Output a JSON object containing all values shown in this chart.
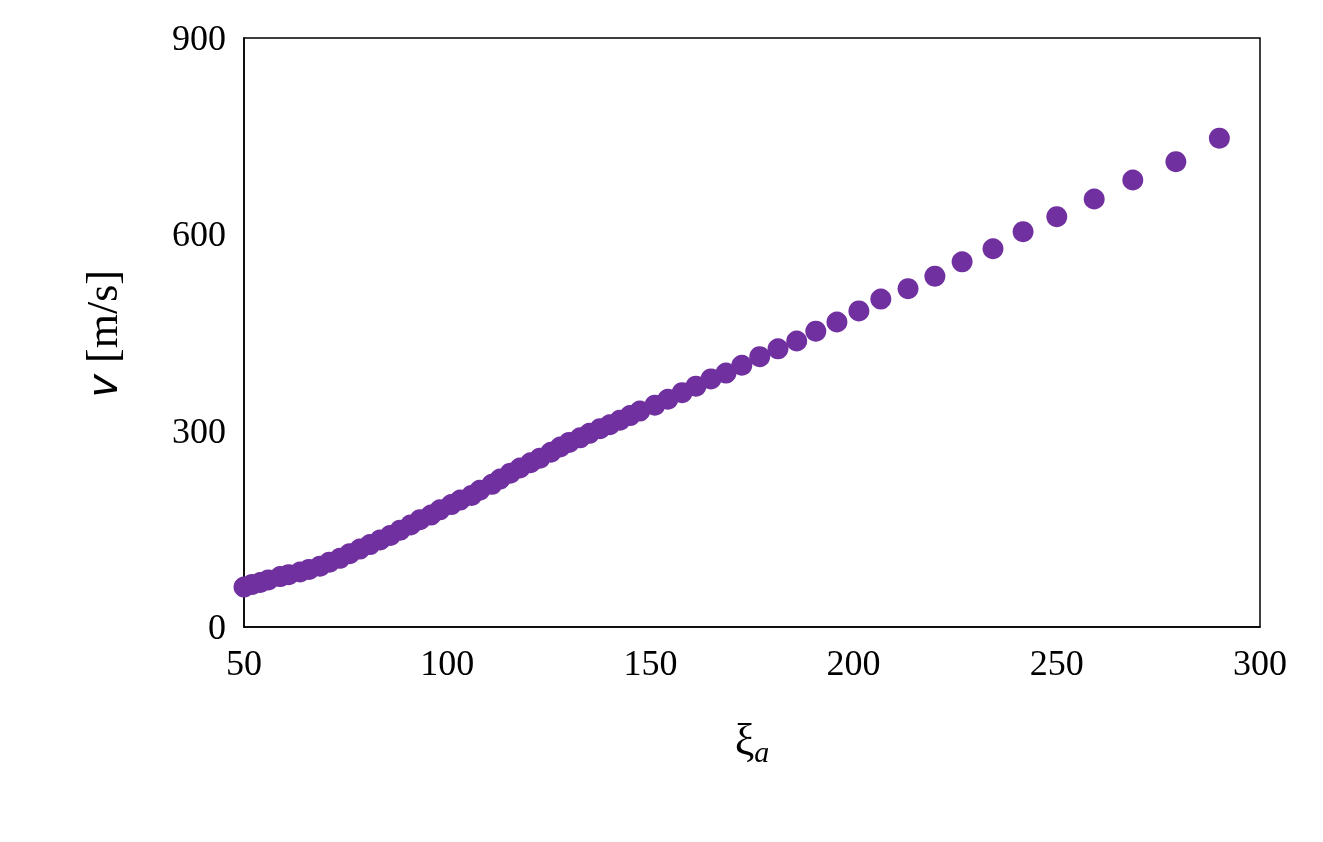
{
  "chart_data": {
    "type": "scatter",
    "xlabel": "ξ$_{a}$",
    "ylabel": "𝑣 [m/s]",
    "xlim": [
      50,
      300
    ],
    "xticks": [
      50,
      100,
      150,
      200,
      250,
      300
    ],
    "ylim": [
      0,
      900
    ],
    "yticks": [
      0,
      300,
      600,
      900
    ],
    "grid": false,
    "marker": "circle",
    "series": [
      {
        "color": "#7030a0",
        "x": [
          50,
          52,
          54,
          56,
          58.9,
          61,
          63.8,
          66,
          68.7,
          71,
          73.6,
          76,
          78.5,
          81,
          83.5,
          86,
          88.4,
          91,
          93.3,
          96,
          98.2,
          101,
          103.2,
          106,
          108,
          111,
          113,
          115.5,
          117.9,
          120.5,
          122.8,
          125.5,
          127.8,
          130,
          132.7,
          135,
          137.6,
          140,
          142.5,
          145,
          147.4,
          151.1,
          154.3,
          157.8,
          161.2,
          164.9,
          168.6,
          172.5,
          176.9,
          181.4,
          186,
          190.7,
          195.9,
          201.3,
          206.7,
          213.4,
          220,
          226.7,
          234.3,
          241.7,
          250,
          259.2,
          268.7,
          279.3,
          290
        ],
        "values": [
          61,
          65,
          68,
          72,
          77,
          80,
          84,
          88,
          93,
          99,
          105,
          112,
          119,
          126,
          133,
          140,
          148,
          156,
          164,
          171,
          179,
          187,
          194,
          201,
          209,
          218,
          226,
          235,
          243,
          251,
          258,
          267,
          275,
          282,
          289,
          296,
          303,
          309,
          316,
          323,
          330,
          339,
          348,
          358,
          368,
          379,
          388,
          400,
          413,
          425,
          437,
          452,
          466,
          483,
          501,
          517,
          536,
          558,
          578,
          604,
          627,
          654,
          683,
          711,
          747
        ]
      }
    ]
  }
}
